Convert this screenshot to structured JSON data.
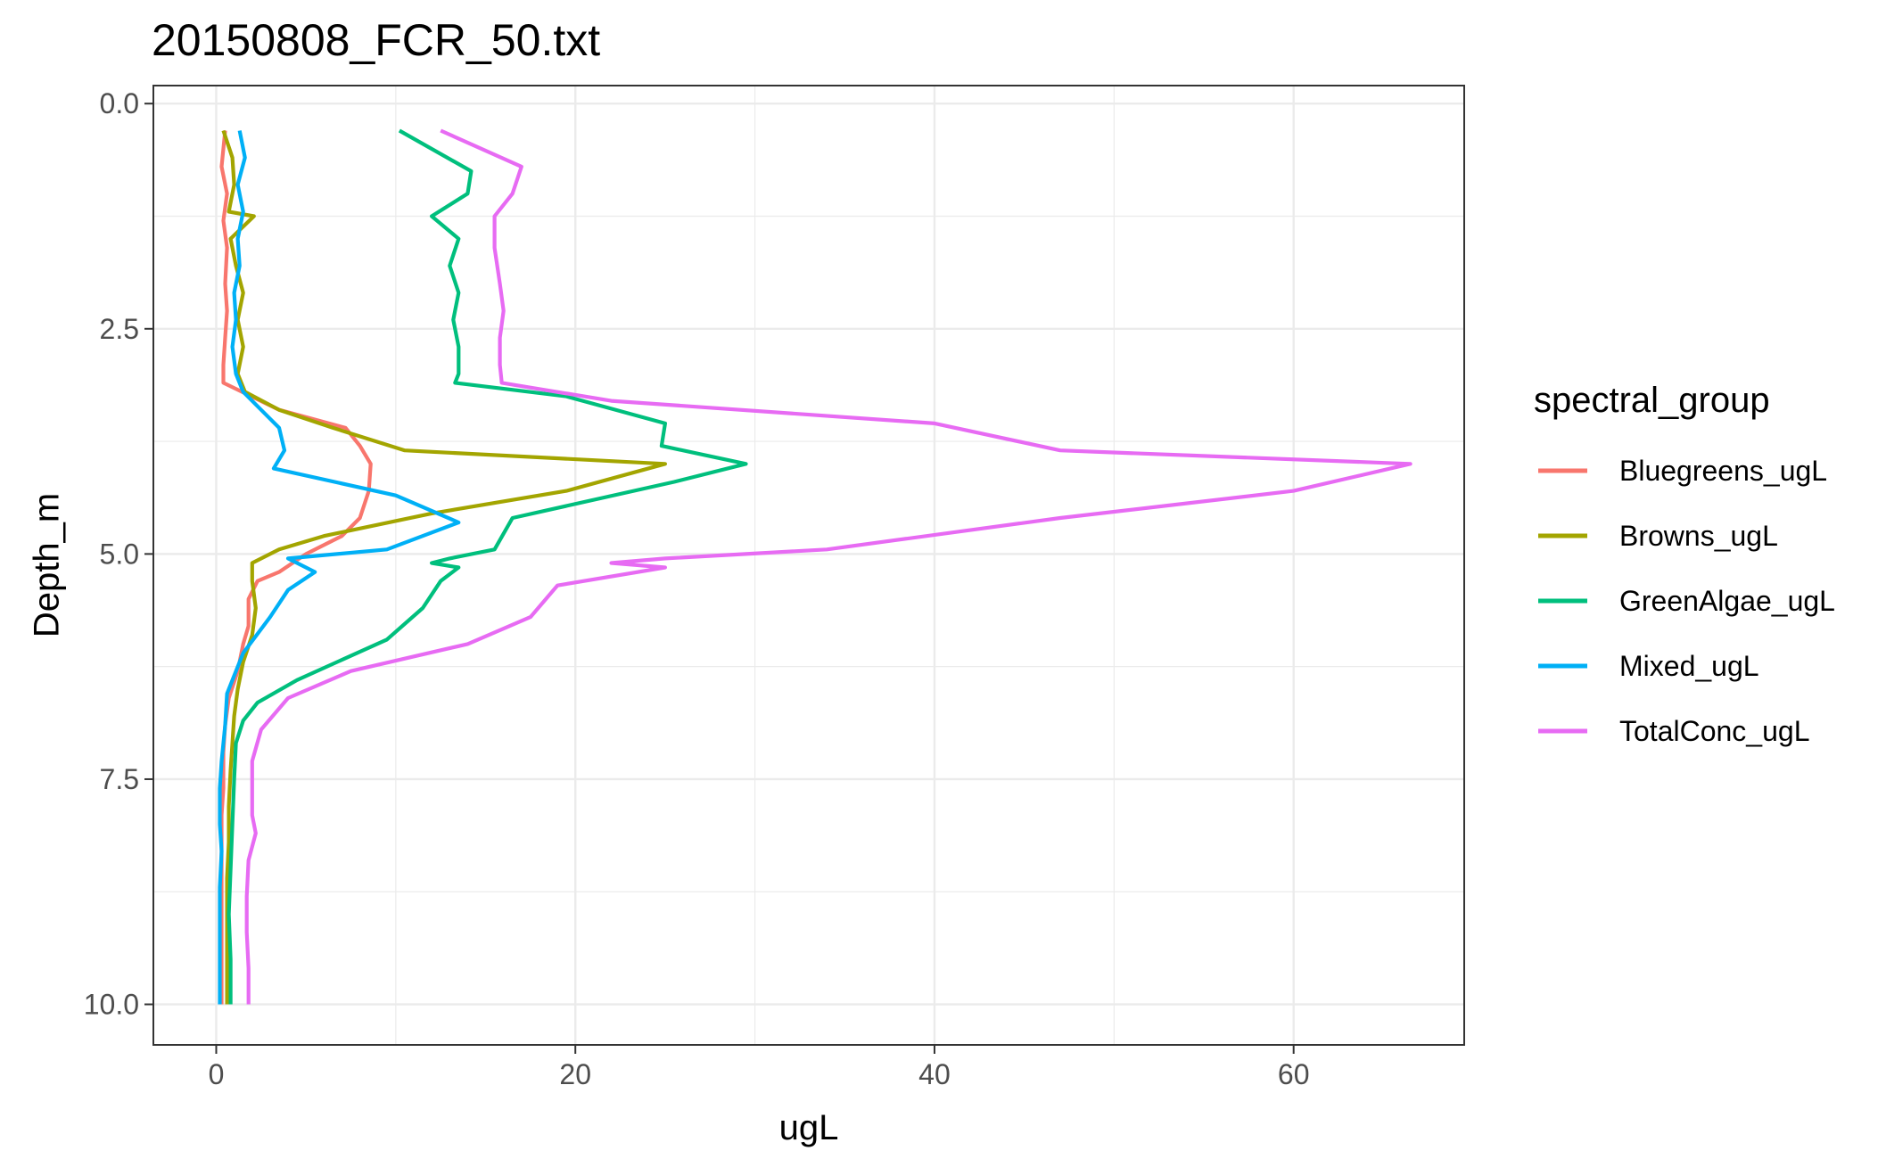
{
  "chart_data": {
    "type": "line",
    "title": "20150808_FCR_50.txt",
    "xlabel": "ugL",
    "ylabel": "Depth_m",
    "xlim": [
      -3.5,
      69.5
    ],
    "ylim": [
      10.45,
      -0.2
    ],
    "y_reversed": true,
    "x_ticks": [
      "0",
      "20",
      "40",
      "60"
    ],
    "x_tick_values": [
      0,
      20,
      40,
      60
    ],
    "y_ticks": [
      "0.0",
      "2.5",
      "5.0",
      "7.5",
      "10.0"
    ],
    "y_tick_values": [
      0,
      2.5,
      5,
      7.5,
      10
    ],
    "grid": true,
    "legend_title": "spectral_group",
    "legend_position": "right",
    "series": [
      {
        "name": "Bluegreens_ugL",
        "color": "#F8766D",
        "points": [
          [
            0.5,
            0.3
          ],
          [
            0.3,
            0.7
          ],
          [
            0.6,
            1.0
          ],
          [
            0.4,
            1.3
          ],
          [
            0.6,
            1.6
          ],
          [
            0.5,
            2.0
          ],
          [
            0.6,
            2.3
          ],
          [
            0.5,
            2.6
          ],
          [
            0.4,
            2.9
          ],
          [
            0.4,
            3.1
          ],
          [
            3.5,
            3.4
          ],
          [
            7.2,
            3.6
          ],
          [
            8.0,
            3.8
          ],
          [
            8.6,
            4.0
          ],
          [
            8.5,
            4.3
          ],
          [
            8.0,
            4.6
          ],
          [
            7.0,
            4.8
          ],
          [
            5.0,
            5.0
          ],
          [
            3.5,
            5.2
          ],
          [
            2.3,
            5.3
          ],
          [
            1.8,
            5.5
          ],
          [
            1.8,
            5.8
          ],
          [
            1.5,
            6.0
          ],
          [
            1.2,
            6.3
          ],
          [
            0.7,
            6.6
          ],
          [
            0.5,
            6.9
          ],
          [
            0.4,
            7.2
          ],
          [
            0.4,
            7.6
          ],
          [
            0.3,
            7.9
          ],
          [
            0.3,
            8.2
          ],
          [
            0.3,
            8.6
          ],
          [
            0.3,
            9.0
          ],
          [
            0.3,
            9.4
          ],
          [
            0.3,
            9.7
          ],
          [
            0.3,
            10.0
          ]
        ]
      },
      {
        "name": "Browns_ugL",
        "color": "#A3A500",
        "points": [
          [
            0.4,
            0.3
          ],
          [
            0.9,
            0.6
          ],
          [
            1.0,
            0.9
          ],
          [
            0.7,
            1.2
          ],
          [
            2.1,
            1.25
          ],
          [
            0.8,
            1.5
          ],
          [
            1.1,
            1.8
          ],
          [
            1.5,
            2.1
          ],
          [
            1.2,
            2.4
          ],
          [
            1.5,
            2.7
          ],
          [
            1.2,
            3.0
          ],
          [
            1.6,
            3.2
          ],
          [
            3.5,
            3.4
          ],
          [
            6.5,
            3.6
          ],
          [
            10.5,
            3.85
          ],
          [
            25.0,
            4.0
          ],
          [
            19.5,
            4.3
          ],
          [
            12.0,
            4.55
          ],
          [
            6.0,
            4.8
          ],
          [
            3.5,
            4.95
          ],
          [
            2.0,
            5.1
          ],
          [
            2.0,
            5.3
          ],
          [
            2.2,
            5.6
          ],
          [
            2.0,
            5.9
          ],
          [
            1.5,
            6.2
          ],
          [
            1.2,
            6.5
          ],
          [
            1.0,
            6.8
          ],
          [
            0.9,
            7.1
          ],
          [
            0.8,
            7.4
          ],
          [
            0.7,
            7.8
          ],
          [
            0.7,
            8.2
          ],
          [
            0.6,
            8.6
          ],
          [
            0.6,
            9.0
          ],
          [
            0.6,
            9.4
          ],
          [
            0.6,
            9.7
          ],
          [
            0.6,
            10.0
          ]
        ]
      },
      {
        "name": "GreenAlgae_ugL",
        "color": "#00BF7D",
        "points": [
          [
            10.2,
            0.3
          ],
          [
            14.2,
            0.75
          ],
          [
            14.0,
            1.0
          ],
          [
            12.0,
            1.25
          ],
          [
            13.5,
            1.5
          ],
          [
            13.0,
            1.8
          ],
          [
            13.5,
            2.1
          ],
          [
            13.2,
            2.4
          ],
          [
            13.5,
            2.7
          ],
          [
            13.5,
            3.0
          ],
          [
            13.3,
            3.1
          ],
          [
            19.5,
            3.25
          ],
          [
            25.0,
            3.55
          ],
          [
            24.8,
            3.8
          ],
          [
            29.5,
            4.0
          ],
          [
            25.5,
            4.2
          ],
          [
            16.5,
            4.6
          ],
          [
            15.5,
            4.95
          ],
          [
            13.0,
            5.05
          ],
          [
            12.0,
            5.1
          ],
          [
            13.5,
            5.15
          ],
          [
            12.5,
            5.3
          ],
          [
            11.5,
            5.6
          ],
          [
            9.5,
            5.95
          ],
          [
            4.5,
            6.4
          ],
          [
            2.3,
            6.65
          ],
          [
            1.5,
            6.85
          ],
          [
            1.1,
            7.1
          ],
          [
            1.0,
            7.5
          ],
          [
            0.9,
            8.0
          ],
          [
            0.8,
            8.5
          ],
          [
            0.7,
            9.0
          ],
          [
            0.8,
            9.5
          ],
          [
            0.8,
            10.0
          ]
        ]
      },
      {
        "name": "Mixed_ugL",
        "color": "#00B0F6",
        "points": [
          [
            1.3,
            0.3
          ],
          [
            1.6,
            0.6
          ],
          [
            1.2,
            0.9
          ],
          [
            1.5,
            1.2
          ],
          [
            1.2,
            1.5
          ],
          [
            1.3,
            1.8
          ],
          [
            1.0,
            2.1
          ],
          [
            1.1,
            2.4
          ],
          [
            0.9,
            2.7
          ],
          [
            1.1,
            3.0
          ],
          [
            1.5,
            3.2
          ],
          [
            2.5,
            3.4
          ],
          [
            3.5,
            3.6
          ],
          [
            3.8,
            3.85
          ],
          [
            3.2,
            4.05
          ],
          [
            10.0,
            4.35
          ],
          [
            13.5,
            4.65
          ],
          [
            9.5,
            4.95
          ],
          [
            4.0,
            5.05
          ],
          [
            5.5,
            5.2
          ],
          [
            4.0,
            5.4
          ],
          [
            3.0,
            5.7
          ],
          [
            1.5,
            6.1
          ],
          [
            0.6,
            6.55
          ],
          [
            0.5,
            6.9
          ],
          [
            0.3,
            7.3
          ],
          [
            0.2,
            7.6
          ],
          [
            0.2,
            8.0
          ],
          [
            0.3,
            8.3
          ],
          [
            0.2,
            8.7
          ],
          [
            0.2,
            9.0
          ],
          [
            0.2,
            9.4
          ],
          [
            0.2,
            9.7
          ],
          [
            0.2,
            10.0
          ]
        ]
      },
      {
        "name": "TotalConc_ugL",
        "color": "#E76BF3",
        "points": [
          [
            12.5,
            0.3
          ],
          [
            17.0,
            0.7
          ],
          [
            16.5,
            1.0
          ],
          [
            15.5,
            1.25
          ],
          [
            15.5,
            1.6
          ],
          [
            15.8,
            2.0
          ],
          [
            16.0,
            2.3
          ],
          [
            15.8,
            2.6
          ],
          [
            15.8,
            2.9
          ],
          [
            15.9,
            3.1
          ],
          [
            22.0,
            3.3
          ],
          [
            40.0,
            3.55
          ],
          [
            47.0,
            3.85
          ],
          [
            66.5,
            4.0
          ],
          [
            60.0,
            4.3
          ],
          [
            47.0,
            4.6
          ],
          [
            34.0,
            4.95
          ],
          [
            25.0,
            5.05
          ],
          [
            22.0,
            5.1
          ],
          [
            25.0,
            5.15
          ],
          [
            19.0,
            5.35
          ],
          [
            17.5,
            5.7
          ],
          [
            14.0,
            6.0
          ],
          [
            7.5,
            6.3
          ],
          [
            4.0,
            6.6
          ],
          [
            2.5,
            6.95
          ],
          [
            2.0,
            7.3
          ],
          [
            2.0,
            7.6
          ],
          [
            2.0,
            7.9
          ],
          [
            2.2,
            8.1
          ],
          [
            1.8,
            8.4
          ],
          [
            1.7,
            8.8
          ],
          [
            1.7,
            9.2
          ],
          [
            1.8,
            9.6
          ],
          [
            1.8,
            10.0
          ]
        ]
      }
    ]
  }
}
